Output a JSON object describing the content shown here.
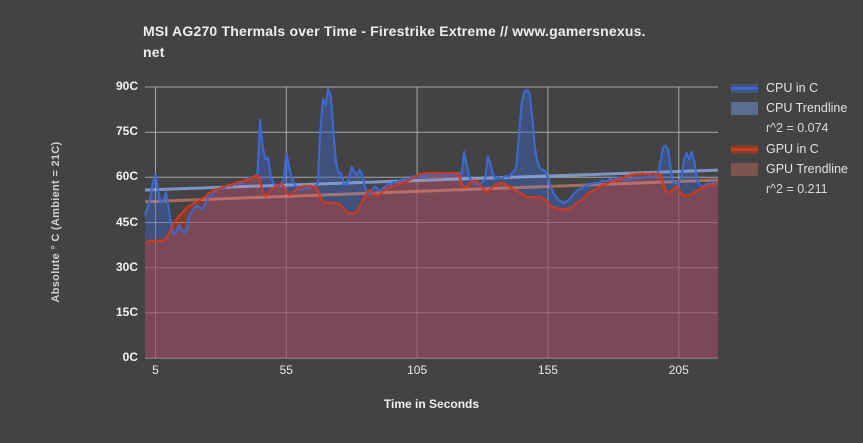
{
  "chart_title": {
    "line1": "MSI AG270 Thermals over Time - Firestrike Extreme // www.gamersnexus.",
    "line2": "net"
  },
  "axes": {
    "y_label": "Absolute ° C (Ambient = 21C)",
    "x_label": "Time in Seconds"
  },
  "legend": {
    "items": [
      {
        "label": "CPU in C",
        "type": "line",
        "series": "cpu"
      },
      {
        "label": "CPU Trendline",
        "sub": "r^2 = 0.074",
        "type": "fill",
        "series": "cpu"
      },
      {
        "label": "GPU in C",
        "type": "line",
        "series": "gpu"
      },
      {
        "label": "GPU Trendline",
        "sub": "r^2 = 0.211",
        "type": "fill",
        "series": "gpu"
      }
    ]
  },
  "chart_data": {
    "type": "area",
    "title": "MSI AG270 Thermals over Time - Firestrike Extreme // www.gamersnexus.net",
    "xlabel": "Time in Seconds",
    "ylabel": "Absolute ° C (Ambient = 21C)",
    "x_range": [
      1,
      220
    ],
    "y_range": [
      0,
      90
    ],
    "x_ticks": [
      5,
      55,
      105,
      155,
      205
    ],
    "y_ticks": [
      {
        "v": 0,
        "label": "0C"
      },
      {
        "v": 15,
        "label": "15C"
      },
      {
        "v": 30,
        "label": "30C"
      },
      {
        "v": 45,
        "label": "45C"
      },
      {
        "v": 60,
        "label": "60C"
      },
      {
        "v": 75,
        "label": "75C"
      },
      {
        "v": 90,
        "label": "90C"
      }
    ],
    "grid": true,
    "legend_position": "right",
    "series": [
      {
        "name": "CPU in C",
        "unit": "C",
        "color": "#3d68ce",
        "fill": "rgba(61,104,206,0.42)",
        "x_start": 1,
        "x_step": 1,
        "values": [
          47.5,
          50,
          53,
          58,
          61,
          56,
          51.5,
          52,
          55,
          50,
          44,
          41,
          42,
          44,
          42.5,
          41.5,
          43,
          47.5,
          48.5,
          50,
          50.5,
          50,
          49.5,
          51,
          53,
          54,
          54.5,
          55.5,
          56,
          56.5,
          56,
          57,
          57.5,
          57,
          58,
          57.5,
          58.5,
          58,
          59,
          59.5,
          60,
          60,
          60.5,
          61,
          79,
          70,
          66,
          66.5,
          61,
          58,
          57.5,
          57,
          58,
          59,
          68,
          64,
          60,
          58,
          56.5,
          55.8,
          56,
          56.5,
          56.2,
          56.5,
          57,
          57,
          58,
          75,
          86,
          84,
          89.5,
          87,
          75,
          65,
          61.5,
          61.5,
          58,
          57.5,
          60,
          63.5,
          62,
          60.5,
          62.5,
          61,
          57,
          55,
          54.5,
          56,
          57,
          56,
          55.5,
          56.5,
          57,
          58,
          57.5,
          58.5,
          58,
          59,
          58.5,
          59.5,
          59,
          59.5,
          60,
          60.5,
          60,
          60.5,
          60.2,
          60.8,
          60.3,
          60.8,
          61,
          60.5,
          61,
          60.8,
          61,
          60.5,
          61,
          60.8,
          61,
          61,
          61.5,
          61,
          68.5,
          64,
          60,
          58.5,
          58,
          57.5,
          58,
          58.5,
          59,
          67,
          64.5,
          61,
          59.5,
          60,
          59.5,
          60,
          60.5,
          60,
          61,
          62,
          64,
          75,
          85,
          88.5,
          89,
          88,
          80,
          70,
          65,
          63,
          62.5,
          62,
          60,
          57,
          55,
          53.5,
          52.5,
          52,
          51.5,
          52,
          52.5,
          53.5,
          54.5,
          55.5,
          56,
          56.5,
          57,
          57.5,
          57.8,
          58,
          58.2,
          58,
          58.5,
          59,
          58.5,
          59,
          59.5,
          59,
          59.5,
          60,
          59.5,
          59,
          59.5,
          59,
          59.5,
          60,
          59.5,
          60,
          59.8,
          60.2,
          60,
          60.5,
          60,
          60.5,
          61,
          65,
          70,
          70.5,
          69,
          62,
          58.5,
          58,
          58.5,
          60,
          66,
          68,
          66,
          68.5,
          65,
          59,
          57.5,
          57,
          57.5,
          58,
          57.8,
          58.2,
          58,
          58.5
        ]
      },
      {
        "name": "GPU in C",
        "unit": "C",
        "color": "#d1391d",
        "fill": "rgba(209,57,29,0.40)",
        "x_start": 1,
        "x_step": 1,
        "values": [
          38.5,
          38.5,
          39,
          38.8,
          39,
          39,
          39,
          39,
          39.5,
          41,
          43,
          44.5,
          46,
          47,
          48,
          49,
          50,
          50.5,
          51,
          51.5,
          52,
          52.5,
          53,
          53.5,
          54.5,
          55,
          55.5,
          56,
          56,
          56.5,
          57,
          57,
          57.5,
          57.5,
          58,
          58,
          58.5,
          58.5,
          59,
          59,
          59.5,
          60,
          60.3,
          60.5,
          59,
          55.5,
          53.8,
          54.5,
          56,
          56.5,
          57,
          57.5,
          57.8,
          57,
          55.5,
          54,
          54.5,
          55.5,
          56,
          56.5,
          57,
          57.2,
          57,
          57.2,
          57,
          56.8,
          56,
          53.5,
          52,
          51.5,
          51.5,
          51.3,
          51.5,
          51.5,
          51.3,
          50.5,
          49.5,
          48.5,
          48,
          48.2,
          48,
          48.5,
          50,
          52,
          53.5,
          55,
          55.8,
          55,
          54.2,
          54,
          54.5,
          55.5,
          56,
          56.5,
          57,
          57,
          57.5,
          58,
          58,
          58.5,
          58.5,
          59,
          59.5,
          60,
          60.5,
          61,
          61.3,
          61.3,
          61.3,
          61.3,
          61.3,
          61.4,
          61.3,
          61.4,
          61.3,
          61.3,
          61.4,
          61.3,
          61.3,
          61.4,
          61,
          58,
          56.5,
          57,
          58,
          58.5,
          59,
          58.5,
          57.5,
          56.5,
          55.5,
          55.2,
          56,
          57,
          57.5,
          58,
          58,
          58,
          57.5,
          57,
          56.5,
          56,
          55.5,
          55,
          54.5,
          54,
          53.5,
          53.5,
          53.3,
          53.5,
          53.3,
          53.5,
          53,
          52.5,
          51.5,
          50.5,
          50,
          49.8,
          49.5,
          49.3,
          49.5,
          49.3,
          49.5,
          50,
          50.5,
          51.5,
          52,
          52.5,
          53.5,
          54.5,
          55,
          55.5,
          56,
          56.5,
          57,
          57.5,
          57.8,
          58,
          58.5,
          58.8,
          59,
          59.3,
          59.5,
          60,
          60.3,
          60.5,
          61,
          61,
          61.2,
          61,
          61.3,
          61,
          61.2,
          61,
          61.3,
          61.2,
          61,
          61,
          58,
          55.5,
          55,
          55.3,
          56,
          57,
          56,
          54.5,
          54,
          54.2,
          54,
          54.5,
          55,
          55.5,
          56,
          56.5,
          57,
          57.3,
          57.5,
          57.5,
          57.8,
          58
        ]
      }
    ],
    "trendlines": [
      {
        "id": "cpu-trendline",
        "name": "CPU Trendline",
        "r2": 0.074,
        "color": "rgba(142,170,224,0.80)",
        "x1": 1,
        "y1": 55.8,
        "x2": 220,
        "y2": 62.4
      },
      {
        "id": "gpu-trendline",
        "name": "GPU Trendline",
        "r2": 0.211,
        "color": "rgba(228,138,120,0.60)",
        "x1": 1,
        "y1": 51.9,
        "x2": 220,
        "y2": 59.1
      }
    ]
  }
}
